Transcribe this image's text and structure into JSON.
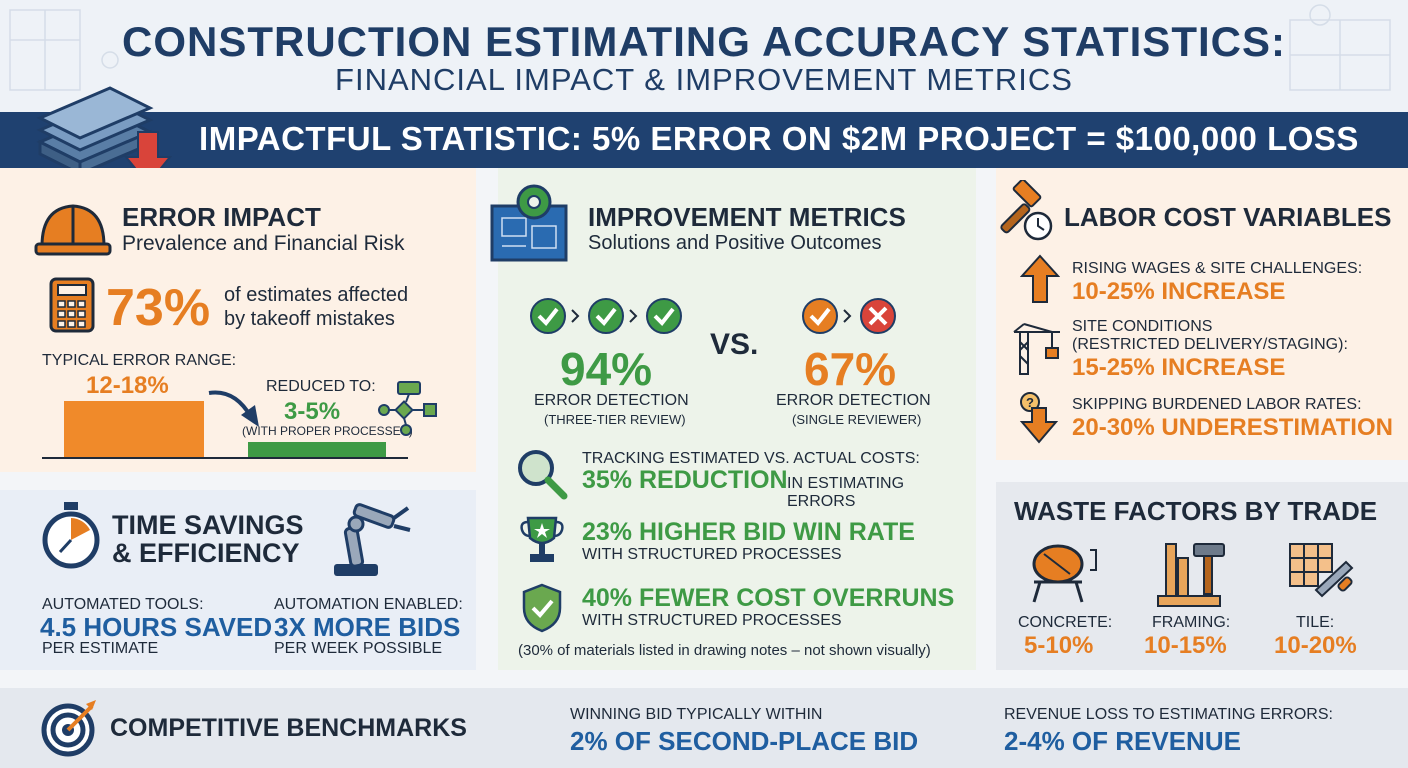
{
  "header": {
    "title": "CONSTRUCTION ESTIMATING ACCURACY STATISTICS:",
    "subtitle": "FINANCIAL IMPACT & IMPROVEMENT METRICS",
    "banner": "IMPACTFUL STATISTIC:  5% ERROR ON $2M PROJECT = $100,000 LOSS"
  },
  "error_impact": {
    "title": "ERROR IMPACT",
    "subtitle": "Prevalence and Financial Risk",
    "stat_value": "73%",
    "stat_text_1": "of estimates affected",
    "stat_text_2": "by takeoff mistakes",
    "typical_label": "TYPICAL ERROR RANGE:",
    "typical_value": "12-18%",
    "reduced_label": "REDUCED TO:",
    "reduced_value": "3-5%",
    "reduced_note": "(WITH PROPER PROCESSES)"
  },
  "time_savings": {
    "title_1": "TIME SAVINGS",
    "title_2": "& EFFICIENCY",
    "left_label": "AUTOMATED TOOLS:",
    "left_value": "4.5 HOURS SAVED",
    "left_note": "PER ESTIMATE",
    "right_label": "AUTOMATION ENABLED:",
    "right_value": "3X MORE BIDS",
    "right_note": "PER WEEK POSSIBLE"
  },
  "improvement": {
    "title": "IMPROVEMENT METRICS",
    "subtitle": "Solutions and Positive Outcomes",
    "vs": "VS.",
    "left_value": "94%",
    "left_label": "ERROR DETECTION",
    "left_note": "(THREE-TIER REVIEW)",
    "right_value": "67%",
    "right_label": "ERROR DETECTION",
    "right_note": "(SINGLE REVIEWER)",
    "tracking_label": "TRACKING ESTIMATED VS. ACTUAL COSTS:",
    "tracking_value": "35% REDUCTION",
    "tracking_suffix": "IN ESTIMATING ERRORS",
    "bid_value": "23% HIGHER BID WIN RATE",
    "bid_note": "WITH STRUCTURED PROCESSES",
    "overrun_value": "40% FEWER COST OVERRUNS",
    "overrun_note": "WITH STRUCTURED PROCESSES",
    "footnote": "(30% of materials listed in drawing notes – not shown visually)"
  },
  "labor": {
    "title": "LABOR COST VARIABLES",
    "item1_label": "RISING WAGES & SITE CHALLENGES:",
    "item1_value": "10-25% INCREASE",
    "item2_label_1": "SITE CONDITIONS",
    "item2_label_2": "(RESTRICTED DELIVERY/STAGING):",
    "item2_value": "15-25% INCREASE",
    "item3_label": "SKIPPING BURDENED LABOR RATES:",
    "item3_value": "20-30% UNDERESTIMATION"
  },
  "waste": {
    "title": "WASTE FACTORS BY TRADE",
    "items": [
      {
        "label": "CONCRETE:",
        "value": "5-10%"
      },
      {
        "label": "FRAMING:",
        "value": "10-15%"
      },
      {
        "label": "TILE:",
        "value": "10-20%"
      }
    ]
  },
  "benchmarks": {
    "title": "COMPETITIVE BENCHMARKS",
    "b1_label": "WINNING BID TYPICALLY WITHIN",
    "b1_value": "2% OF SECOND-PLACE BID",
    "b2_label": "REVENUE LOSS TO ESTIMATING ERRORS:",
    "b2_value": "2-4% OF REVENUE"
  },
  "colors": {
    "navy": "#1f3d66",
    "orange": "#e67e22",
    "green": "#3e9a45",
    "red": "#d9443a"
  },
  "chart_data": {
    "type": "bar",
    "categories": [
      "TYPICAL ERROR RANGE",
      "REDUCED TO"
    ],
    "values": [
      15,
      4
    ],
    "labels": [
      "12-18%",
      "3-5%"
    ]
  }
}
